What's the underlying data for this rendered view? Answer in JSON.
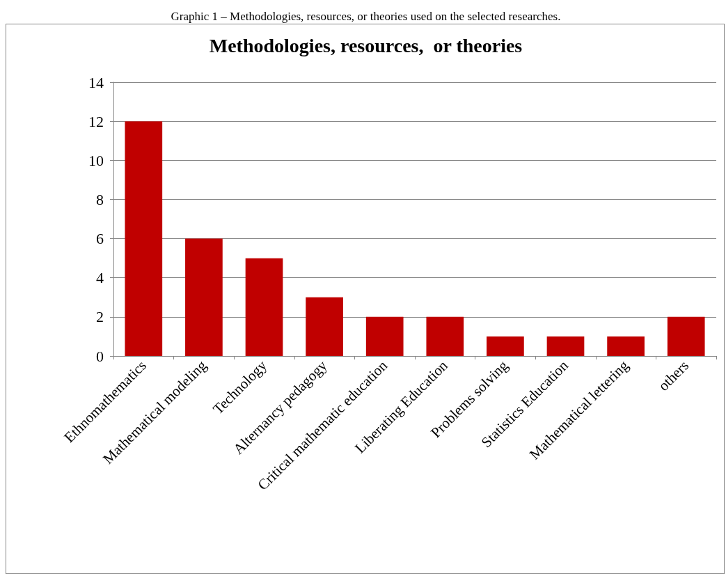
{
  "chart_data": {
    "type": "bar",
    "title": "Methodologies, resources,  or theories",
    "annotations": [
      "Graphic 1 – Methodologies, resources, or theories used on the selected researches."
    ],
    "categories": [
      "Ethnomathematics",
      "Mathematical modeling",
      "Technology",
      "Alternancy pedagogy",
      "Critical mathematic education",
      "Liberating Education",
      "Problems solving",
      "Statistics Education",
      "Mathematical lettering",
      "others"
    ],
    "values": [
      12,
      6,
      5,
      3,
      2,
      2,
      1,
      1,
      1,
      2
    ],
    "color": "#c00000",
    "ylim": [
      0,
      14
    ],
    "yticks": [
      0,
      2,
      4,
      6,
      8,
      10,
      12,
      14
    ],
    "grid": "y"
  }
}
